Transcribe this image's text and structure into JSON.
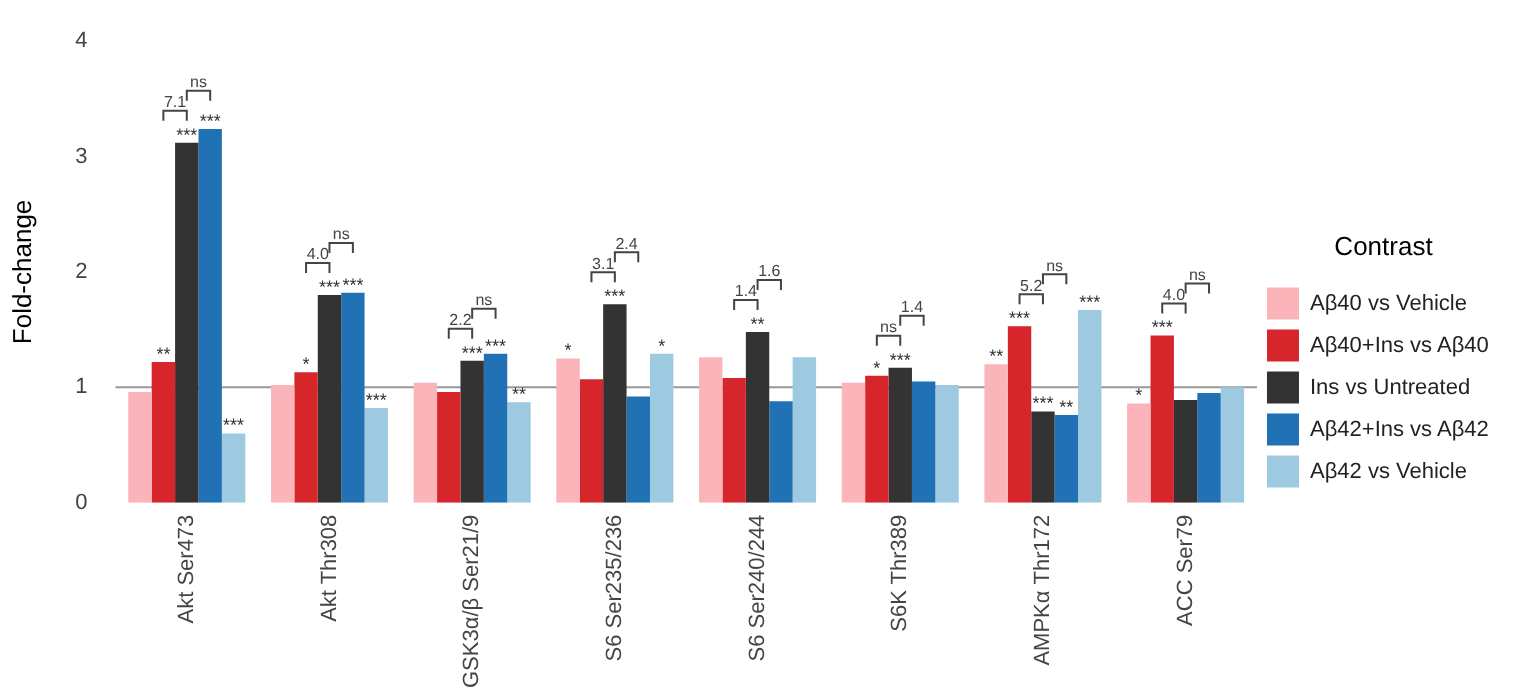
{
  "chart_data": {
    "type": "bar",
    "ylabel": "Fold-change",
    "legend_title": "Contrast",
    "legend": "right",
    "grid": false,
    "categories": [
      "Akt Ser473",
      "Akt Thr308",
      "GSK3α/β Ser21/9",
      "S6 Ser235/236",
      "S6 Ser240/244",
      "S6K Thr389",
      "AMPKα Thr172",
      "ACC Ser79"
    ],
    "ylim": [
      0,
      4
    ],
    "yticks": [
      0,
      1,
      2,
      3,
      4
    ],
    "series": [
      {
        "name": "Aβ40 vs Vehicle",
        "color": "#fbb4b9",
        "values": [
          0.96,
          1.02,
          1.04,
          1.25,
          1.26,
          1.04,
          1.2,
          0.86
        ],
        "value_labels": [
          null,
          null,
          null,
          "*",
          null,
          null,
          "**",
          "*"
        ]
      },
      {
        "name": "Aβ40+Ins vs Aβ40",
        "color": "#d7262b",
        "values": [
          1.22,
          1.13,
          0.96,
          1.07,
          1.08,
          1.1,
          1.53,
          1.45
        ],
        "value_labels": [
          "**",
          "*",
          null,
          null,
          null,
          "*",
          "***",
          "***"
        ]
      },
      {
        "name": "Ins vs Untreated",
        "color": "#333333",
        "values": [
          3.12,
          1.8,
          1.23,
          1.72,
          1.48,
          1.17,
          0.79,
          0.89
        ],
        "value_labels": [
          "***",
          "***",
          "***",
          "***",
          "**",
          "***",
          "***",
          null
        ]
      },
      {
        "name": "Aβ42+Ins vs Aβ42",
        "color": "#2171b5",
        "values": [
          3.24,
          1.82,
          1.29,
          0.92,
          0.88,
          1.05,
          0.76,
          0.95
        ],
        "value_labels": [
          "***",
          "***",
          "***",
          null,
          null,
          null,
          "**",
          null
        ]
      },
      {
        "name": "Aβ42 vs Vehicle",
        "color": "#9ecae1",
        "values": [
          0.6,
          0.82,
          0.87,
          1.29,
          1.26,
          1.02,
          1.67,
          1.0
        ],
        "value_labels": [
          "***",
          "***",
          "**",
          "*",
          null,
          null,
          "***",
          null
        ]
      }
    ],
    "ref_lines": [
      {
        "axis": "y",
        "value": 1,
        "color": "#999999"
      }
    ],
    "annotations": [
      "7.1",
      "ns",
      "4.0",
      "ns",
      "2.2",
      "ns",
      "3.1",
      "2.4",
      "1.4",
      "1.6",
      "ns",
      "1.4",
      "5.2",
      "ns",
      "4.0",
      "ns"
    ]
  }
}
